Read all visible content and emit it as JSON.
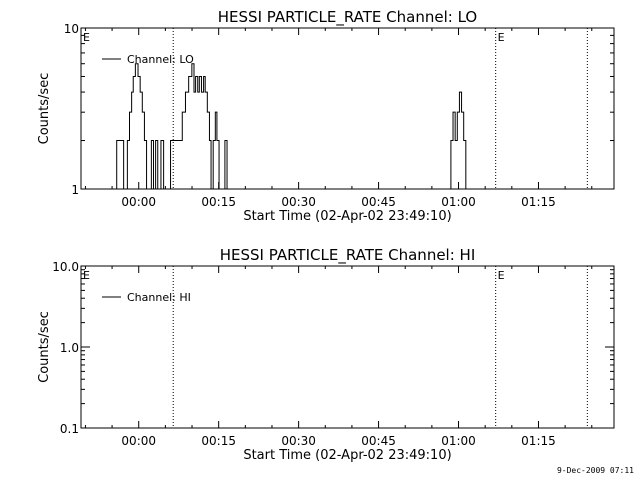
{
  "footer": {
    "timestamp": "9-Dec-2009 07:11"
  },
  "chart_data": [
    {
      "type": "line",
      "title": "HESSI PARTICLE_RATE Channel: LO",
      "xlabel": "Start Time (02-Apr-02 23:49:10)",
      "ylabel": "Counts/sec",
      "yscale": "log",
      "ylim": [
        1,
        10
      ],
      "y_tick_labels": [
        "1",
        "10"
      ],
      "xlim_minutes_after_start": [
        0,
        100
      ],
      "x_tick_labels": [
        "00:00",
        "00:15",
        "00:30",
        "00:45",
        "01:00",
        "01:15"
      ],
      "x_tick_minutes": [
        10.83,
        25.83,
        40.83,
        55.83,
        70.83,
        85.83
      ],
      "markers": [
        {
          "label": "E",
          "minute": 0
        },
        {
          "label": "",
          "minute": 17.3
        },
        {
          "label": "E",
          "minute": 77.8
        },
        {
          "label": "",
          "minute": 95
        }
      ],
      "legend": {
        "entry": "Channel: LO",
        "placement": "top-left"
      },
      "series": [
        {
          "name": "Channel: LO",
          "points": [
            [
              6.3,
              1
            ],
            [
              6.7,
              2
            ],
            [
              7.6,
              2
            ],
            [
              8.0,
              1
            ],
            [
              8.4,
              1
            ],
            [
              8.7,
              2
            ],
            [
              9.1,
              3
            ],
            [
              9.5,
              4
            ],
            [
              9.8,
              5
            ],
            [
              10.2,
              6
            ],
            [
              10.7,
              5
            ],
            [
              11.1,
              4
            ],
            [
              11.5,
              3
            ],
            [
              11.9,
              2
            ],
            [
              12.3,
              1
            ],
            [
              12.8,
              1
            ],
            [
              13.2,
              2
            ],
            [
              13.6,
              1
            ],
            [
              14.0,
              2
            ],
            [
              14.4,
              1
            ],
            [
              15.0,
              2
            ],
            [
              15.5,
              1
            ],
            [
              16.4,
              1
            ],
            [
              16.8,
              2
            ],
            [
              18.5,
              2
            ],
            [
              19.0,
              3
            ],
            [
              19.6,
              4
            ],
            [
              20.2,
              5
            ],
            [
              20.8,
              6
            ],
            [
              21.2,
              4
            ],
            [
              21.5,
              5
            ],
            [
              21.9,
              4
            ],
            [
              22.2,
              5
            ],
            [
              22.6,
              4
            ],
            [
              23.0,
              5
            ],
            [
              23.3,
              4
            ],
            [
              23.7,
              3
            ],
            [
              24.1,
              2
            ],
            [
              24.4,
              1
            ],
            [
              24.8,
              2
            ],
            [
              25.2,
              3
            ],
            [
              25.5,
              2
            ],
            [
              25.9,
              1
            ],
            [
              26.6,
              1
            ],
            [
              27.0,
              2
            ],
            [
              27.4,
              1
            ],
            [
              69.0,
              1
            ],
            [
              69.4,
              2
            ],
            [
              69.8,
              3
            ],
            [
              70.2,
              2
            ],
            [
              70.6,
              3
            ],
            [
              71.0,
              4
            ],
            [
              71.4,
              3
            ],
            [
              71.8,
              2
            ],
            [
              72.2,
              1
            ]
          ]
        }
      ]
    },
    {
      "type": "line",
      "title": "HESSI PARTICLE_RATE Channel: HI",
      "xlabel": "Start Time (02-Apr-02 23:49:10)",
      "ylabel": "Counts/sec",
      "yscale": "log",
      "ylim": [
        0.1,
        10
      ],
      "y_tick_labels": [
        "0.1",
        "1.0",
        "10.0"
      ],
      "xlim_minutes_after_start": [
        0,
        100
      ],
      "x_tick_labels": [
        "00:00",
        "00:15",
        "00:30",
        "00:45",
        "01:00",
        "01:15"
      ],
      "x_tick_minutes": [
        10.83,
        25.83,
        40.83,
        55.83,
        70.83,
        85.83
      ],
      "markers": [
        {
          "label": "E",
          "minute": 0
        },
        {
          "label": "",
          "minute": 17.3
        },
        {
          "label": "E",
          "minute": 77.8
        },
        {
          "label": "",
          "minute": 95
        }
      ],
      "legend": {
        "entry": "Channel: HI",
        "placement": "top-left"
      },
      "series": [
        {
          "name": "Channel: HI",
          "points": []
        }
      ]
    }
  ]
}
